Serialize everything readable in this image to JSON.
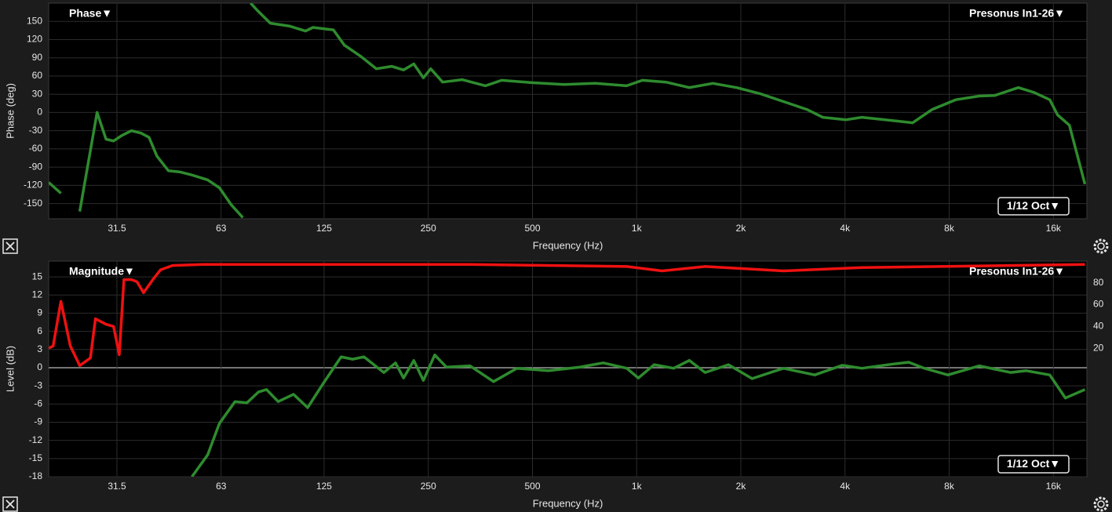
{
  "chart_data": [
    {
      "type": "line",
      "title": "Phase▼",
      "source_label": "Presonus In1-26▼",
      "resolution_label": "1/12 Oct▼",
      "x_label": "Frequency (Hz)",
      "y_label": "Phase (deg)",
      "xscale": "log",
      "grid": true,
      "xlim": [
        20,
        20000
      ],
      "xticks": [
        31.5,
        63,
        125,
        250,
        500,
        {
          "value": 1000,
          "label": "1k"
        },
        {
          "value": 2000,
          "label": "2k"
        },
        {
          "value": 4000,
          "label": "4k"
        },
        {
          "value": 8000,
          "label": "8k"
        },
        {
          "value": 16000,
          "label": "16k"
        }
      ],
      "ylim": [
        -175,
        180
      ],
      "yticks": [
        150,
        120,
        90,
        60,
        30,
        0,
        -30,
        -60,
        -90,
        -120,
        -150
      ],
      "series": [
        {
          "color": "#2e8b2e",
          "x": [
            20,
            21.7,
            23,
            24.6,
            27.6,
            29.3,
            30.8,
            32.5,
            34.7,
            37,
            39,
            41.1,
            44.4,
            48,
            51.9,
            57.6,
            62.3,
            67.4,
            72.8,
            75,
            76.7,
            80.8,
            87.4,
            99.6,
            110.5,
            116,
            133,
            143,
            159,
            177,
            196,
            212,
            227,
            242,
            254,
            275,
            313,
            366,
            407,
            501,
            617,
            760,
            936,
            1039,
            1215,
            1420,
            1661,
            1943,
            2271,
            2656,
            3105,
            3447,
            4030,
            4472,
            5229,
            6274,
            7146,
            8359,
            9770,
            10844,
            12680,
            14072,
            15620,
            16450,
            17800,
            19740
          ],
          "values": [
            -115,
            -133,
            null,
            -163,
            0,
            -44,
            -47,
            -38,
            -30,
            -34,
            -41,
            -72,
            -96,
            -98,
            -103,
            -111,
            -124,
            -152,
            -173,
            null,
            180,
            166,
            147,
            142,
            134,
            140,
            136,
            111,
            93,
            72,
            76,
            70,
            80,
            57,
            72,
            50,
            54,
            44,
            53,
            49,
            46,
            48,
            44,
            53,
            50,
            41,
            48,
            41,
            31,
            18,
            5,
            -8,
            -12,
            -8,
            -12,
            -17,
            5,
            21,
            27,
            28,
            41,
            33,
            21,
            -4,
            -21,
            -118
          ]
        }
      ]
    },
    {
      "type": "line",
      "title": "Magnitude▼",
      "source_label": "Presonus In1-26▼",
      "resolution_label": "1/12 Oct▼",
      "x_label": "Frequency (Hz)",
      "y_label": "Level (dB)",
      "xscale": "log",
      "grid": true,
      "xlim": [
        20,
        20000
      ],
      "xticks": [
        31.5,
        63,
        125,
        250,
        500,
        {
          "value": 1000,
          "label": "1k"
        },
        {
          "value": 2000,
          "label": "2k"
        },
        {
          "value": 4000,
          "label": "4k"
        },
        {
          "value": 8000,
          "label": "8k"
        },
        {
          "value": 16000,
          "label": "16k"
        }
      ],
      "ylim": [
        -18,
        17.6
      ],
      "yticks": [
        15,
        12,
        9,
        6,
        3,
        0,
        -3,
        -6,
        -9,
        -12,
        -15,
        -18
      ],
      "y2lim": [
        -98,
        100
      ],
      "y2ticks": [
        80,
        60,
        40,
        20
      ],
      "series": [
        {
          "color": "#2e8b2e",
          "x": [
            51.9,
            57.6,
            62.3,
            69.1,
            74.8,
            80.8,
            85.2,
            92.1,
            102,
            112,
            124,
            140,
            151,
            163,
            186,
            201,
            212,
            227,
            242,
            261,
            282,
            330,
            386,
            451,
            556,
            685,
            801,
            936,
            1012,
            1124,
            1280,
            1420,
            1577,
            1843,
            2156,
            2656,
            3270,
            3926,
            4472,
            5508,
            6114,
            6784,
            7933,
            9770,
            12038,
            13356,
            15620,
            17330,
            19740
          ],
          "values": [
            -18,
            -14.4,
            -9.2,
            -5.6,
            -5.8,
            -4,
            -3.6,
            -5.6,
            -4.4,
            -6.6,
            -2.7,
            1.8,
            1.4,
            1.8,
            -0.8,
            0.8,
            -1.7,
            1.2,
            -2.1,
            2.1,
            0.1,
            0.3,
            -2.3,
            -0.1,
            -0.5,
            0.1,
            0.8,
            -0.1,
            -1.7,
            0.5,
            -0.1,
            1.2,
            -0.8,
            0.5,
            -1.8,
            -0.1,
            -1.2,
            0.4,
            -0.1,
            0.6,
            0.9,
            -0.1,
            -1.2,
            0.3,
            -0.8,
            -0.5,
            -1.2,
            -5,
            -3.6
          ]
        },
        {
          "color": "#ee1111",
          "axis": "y2",
          "x": [
            20,
            20.6,
            21.7,
            23.1,
            24.6,
            26.4,
            27.3,
            29.3,
            30.8,
            32,
            33,
            34.7,
            36,
            37.6,
            40,
            42.1,
            45.6,
            56.1,
            330,
            936,
            1184,
            1577,
            2656,
            4472,
            7527,
            19740
          ],
          "values": [
            20,
            22,
            63,
            22,
            4,
            11,
            47,
            42,
            40,
            14,
            83,
            83,
            81,
            71,
            83,
            92,
            96,
            97,
            97,
            95,
            91,
            95,
            91,
            94,
            95,
            97
          ]
        }
      ]
    }
  ]
}
